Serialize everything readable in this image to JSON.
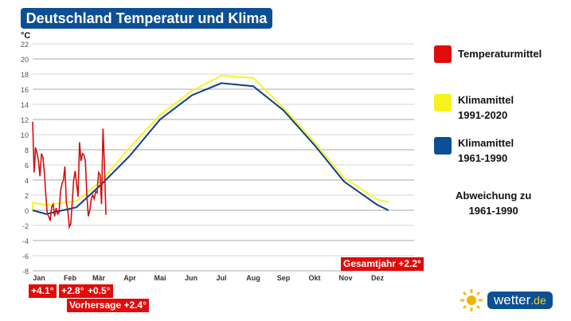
{
  "title": "Deutschland Temperatur und Klima",
  "chart_data": {
    "type": "line",
    "ylabel": "°C",
    "ylim": [
      -8,
      22
    ],
    "yticks": [
      22,
      20,
      18,
      16,
      14,
      12,
      10,
      8,
      6,
      4,
      2,
      0,
      -2,
      -4,
      -6,
      -8
    ],
    "categories": [
      "Jan",
      "Feb",
      "Mär",
      "Apr",
      "Mai",
      "Jun",
      "Jul",
      "Aug",
      "Sep",
      "Okt",
      "Nov",
      "Dez"
    ],
    "series": [
      {
        "name": "Klimamittel 1991-2020",
        "color": "#f5f527",
        "start": 1.0,
        "values": [
          0.7,
          1.2,
          4.0,
          8.3,
          12.6,
          15.8,
          17.8,
          17.5,
          13.5,
          9.0,
          4.3,
          1.4
        ],
        "end": 1.1
      },
      {
        "name": "Klimamittel 1961-1990",
        "color": "#0d3f86",
        "start": 0.0,
        "values": [
          -0.5,
          0.4,
          3.5,
          7.2,
          12.0,
          15.2,
          16.8,
          16.4,
          13.2,
          8.6,
          3.8,
          0.7
        ],
        "end": 0.0
      },
      {
        "name": "Temperaturmittel",
        "color": "#d01010",
        "daily": [
          11.7,
          5,
          8.3,
          7.5,
          6.5,
          4.5,
          7.5,
          7,
          5,
          2,
          -0.5,
          -0.8,
          -1.4,
          0.5,
          0.8,
          -0.8,
          0.3,
          -0.5,
          -0.3,
          2.5,
          3.5,
          4,
          5.8,
          1,
          0,
          -2.2,
          -1.8,
          1,
          4,
          5.2,
          3.5,
          1.8,
          9,
          6.5,
          7.5,
          7.3,
          6.5,
          2,
          -0.8,
          0,
          1.5,
          2,
          1.5,
          2.5,
          2.3,
          5,
          4.7,
          0.8,
          10.8,
          6,
          -0.6
        ]
      }
    ]
  },
  "legend": {
    "temp": "Temperaturmittel",
    "k1a": "Klimamittel",
    "k1b": "1991-2020",
    "k2a": "Klimamittel",
    "k2b": "1961-1990",
    "abw1": "Abweichung zu",
    "abw2": "1961-1990"
  },
  "badges": {
    "jan": "+4.1°",
    "feb": "+2.8°",
    "mar": "+0.5°",
    "forecast": "Vorhersage +2.4°",
    "year": "Gesamtjahr +2.2°"
  },
  "logo": {
    "main": "wetter",
    "tld": ".de"
  }
}
